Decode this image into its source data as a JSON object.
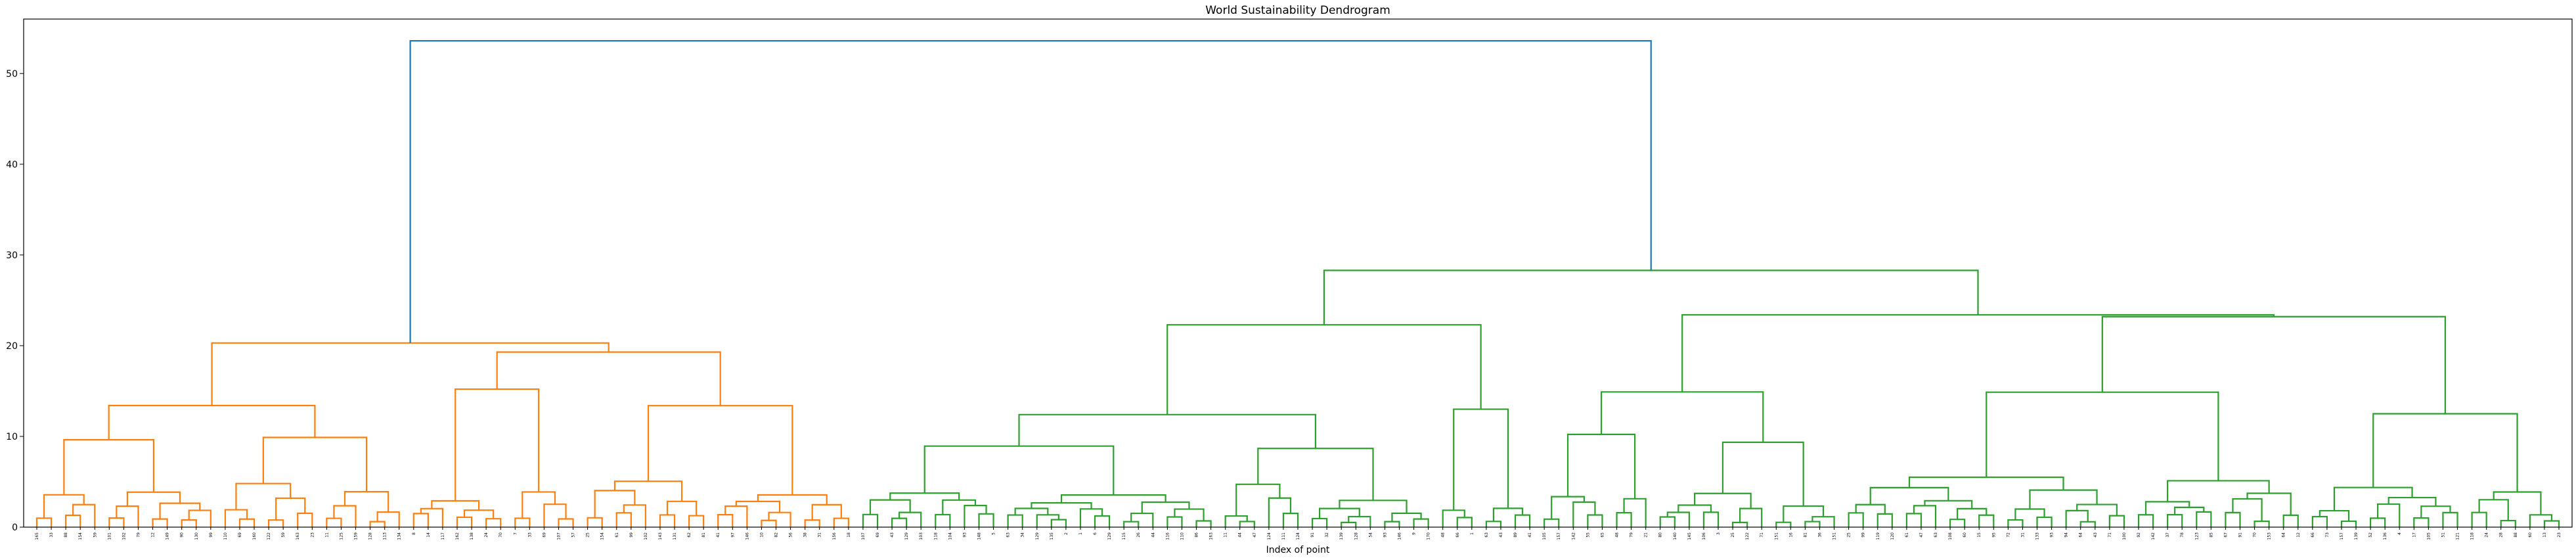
{
  "chart_data": {
    "type": "dendrogram",
    "title": "World Sustainability Dendrogram",
    "xlabel": "Index of point",
    "ylabel": "",
    "ylim": [
      0,
      56
    ],
    "yticks": [
      0,
      10,
      20,
      30,
      40,
      50
    ],
    "grid": false,
    "colors": {
      "cluster_1": "#ff7f0e",
      "cluster_2": "#2ca02c",
      "above_threshold": "#1f77b4"
    },
    "leaf_labels": [
      "165",
      "33",
      "88",
      "154",
      "59",
      "101",
      "102",
      "79",
      "12",
      "149",
      "90",
      "130",
      "99",
      "110",
      "69",
      "160",
      "122",
      "59",
      "163",
      "23",
      "11",
      "125",
      "159",
      "128",
      "113",
      "134",
      "8",
      "14",
      "117",
      "162",
      "138",
      "24",
      "70",
      "7",
      "33",
      "69",
      "107",
      "57",
      "25",
      "154",
      "61",
      "99",
      "102",
      "143",
      "131",
      "62",
      "81",
      "41",
      "97",
      "146",
      "10",
      "82",
      "56",
      "38",
      "31",
      "156",
      "18",
      "107",
      "69",
      "43",
      "129",
      "103",
      "118",
      "104",
      "93",
      "148",
      "5",
      "63",
      "34",
      "129",
      "135",
      "2",
      "1",
      "6",
      "129",
      "115",
      "26",
      "44",
      "116",
      "110",
      "86",
      "163",
      "11",
      "44",
      "47",
      "124",
      "111",
      "124",
      "91",
      "32",
      "139",
      "128",
      "54",
      "93",
      "146",
      "9",
      "170",
      "48",
      "66",
      "1",
      "63",
      "43",
      "89",
      "41",
      "105",
      "157",
      "142",
      "55",
      "65",
      "48",
      "79",
      "21",
      "80",
      "140",
      "145",
      "106",
      "3",
      "25",
      "122",
      "71",
      "151",
      "16",
      "81",
      "36",
      "151",
      "25",
      "99",
      "119",
      "120",
      "61",
      "47",
      "63",
      "108",
      "60",
      "15",
      "95",
      "72",
      "31",
      "133",
      "93",
      "94",
      "64",
      "43",
      "71",
      "100",
      "92",
      "142",
      "37",
      "78",
      "123",
      "85",
      "67",
      "91",
      "70",
      "153",
      "64",
      "12",
      "66",
      "73",
      "157",
      "139",
      "52",
      "136",
      "4",
      "17",
      "105",
      "51",
      "121",
      "118",
      "24",
      "28",
      "88",
      "60",
      "13",
      "23"
    ],
    "leaf_label_note": "",
    "merges": [
      {
        "left": 0,
        "right": 1,
        "height": 3.4
      },
      {
        "left": 3,
        "right": 4,
        "height": 3.0
      },
      {
        "left": 2,
        "right": "m1",
        "height": 5.6
      },
      {
        "left": "m0",
        "right": "m2",
        "height": 6.0
      },
      {
        "left": "m3",
        "right": 5,
        "height": 8.7
      },
      {
        "left": 6,
        "right": 7,
        "height": 4.6
      },
      {
        "left": 9,
        "right": 10,
        "height": 2.8
      },
      {
        "left": 11,
        "right": 12,
        "height": 3.4
      },
      {
        "left": "m6",
        "right": "m7",
        "height": 5.0
      },
      {
        "left": 8,
        "right": "m8",
        "height": 5.9
      },
      {
        "left": "m5",
        "right": "m9",
        "height": 7.0
      },
      {
        "left": 13,
        "right": 14,
        "height": 4.9
      },
      {
        "left": "m10",
        "right": "m11",
        "height": 8.5
      },
      {
        "left": "m4",
        "right": "m12",
        "height": 13.4
      },
      {
        "left": 15,
        "right": 16,
        "height": 4.4
      },
      {
        "left": 17,
        "right": 18,
        "height": 3.3
      },
      {
        "left": "m14",
        "right": "m15",
        "height": 4.3
      },
      {
        "left": 19,
        "right": 20,
        "height": 4.1
      },
      {
        "left": 21,
        "right": 22,
        "height": 3.8
      },
      {
        "left": "m17",
        "right": "m18",
        "height": 4.8
      },
      {
        "left": "m16",
        "right": "m19",
        "height": 7.3
      },
      {
        "left": 23,
        "right": 24,
        "height": 4.8
      },
      {
        "left": 25,
        "right": 26,
        "height": 4.9
      },
      {
        "left": "m21",
        "right": "m22",
        "height": 7.2
      },
      {
        "left": "m23",
        "right": 27,
        "height": 8.4
      },
      {
        "left": "m20",
        "right": "m24",
        "height": 11.5
      },
      {
        "left": "m13",
        "right": "m25",
        "height": 20.2
      },
      {
        "left": 28,
        "right": 29,
        "height": 14.4
      },
      {
        "left": 30,
        "right": 31,
        "height": 3.2
      },
      {
        "left": "m28",
        "right": 32,
        "height": 5.1
      },
      {
        "left": 33,
        "right": 34,
        "height": 3.3
      },
      {
        "left": "m29",
        "right": "m30",
        "height": 7.1
      },
      {
        "left": 35,
        "right": 36,
        "height": 7.5
      },
      {
        "left": "m31",
        "right": "m32",
        "height": 10.9
      },
      {
        "left": 37,
        "right": 38,
        "height": 7.8
      },
      {
        "left": "m37",
        "right": 39,
        "height": 10.3
      },
      {
        "left": 40,
        "right": 41,
        "height": 5.4
      },
      {
        "left": 42,
        "right": 43,
        "height": 4.1
      },
      {
        "left": "m36",
        "right": "m37x",
        "height": 5.9
      },
      {
        "left": 44,
        "right": 45,
        "height": 5.5
      },
      {
        "left": 46,
        "right": 47,
        "height": 3.3
      },
      {
        "left": "m39",
        "right": "m40",
        "height": 6.0
      },
      {
        "left": "m38",
        "right": "m41",
        "height": 8.9
      },
      {
        "left": "m42",
        "right": 48,
        "height": 10.3
      },
      {
        "left": 49,
        "right": 50,
        "height": 3.3
      },
      {
        "left": "m44",
        "right": 51,
        "height": 4.5
      },
      {
        "left": "m45",
        "right": 52,
        "height": 5.1
      },
      {
        "left": "m46",
        "right": 53,
        "height": 10.5
      },
      {
        "left": "m43",
        "right": "m47",
        "height": 12.0
      },
      {
        "left": "m35",
        "right": "m48",
        "height": 14.2
      },
      {
        "left": "m33",
        "right": "m49",
        "height": 17.3
      },
      {
        "left": "m27",
        "right": "m50",
        "height": 19.3
      },
      {
        "left": "m26",
        "right": "m51",
        "height": 20.3
      },
      {
        "left": "cluster_2",
        "right": "",
        "height": 53.6
      }
    ],
    "top_merges": [
      {
        "label": "orange cluster root",
        "height": 20.3
      },
      {
        "label": "green cluster root",
        "height": 28.3
      },
      {
        "label": "root",
        "height": 53.6
      }
    ]
  }
}
